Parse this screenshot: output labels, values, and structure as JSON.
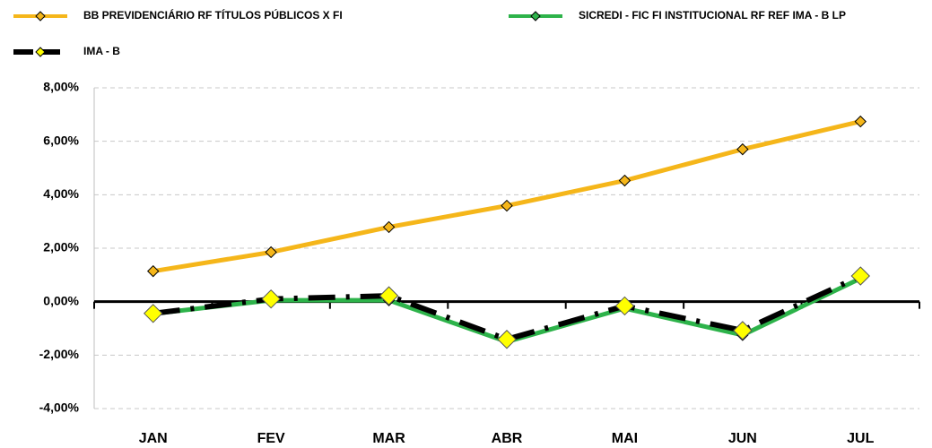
{
  "chart_data": {
    "type": "line",
    "categories": [
      "JAN",
      "FEV",
      "MAR",
      "ABR",
      "MAI",
      "JUN",
      "JUL"
    ],
    "series": [
      {
        "name": "BB PREVIDENCIÁRIO RF TÍTULOS PÚBLICOS X FI",
        "color": "#f5b61a",
        "marker_color": "#f5b61a",
        "values": [
          1.14,
          1.85,
          2.79,
          3.59,
          4.53,
          5.7,
          6.74
        ]
      },
      {
        "name": "SICREDI - FIC FI INSTITUCIONAL RF REF IMA - B LP",
        "color": "#2db34a",
        "marker_color": "#2db34a",
        "values": [
          -0.45,
          0.05,
          0.05,
          -1.5,
          -0.25,
          -1.25,
          0.87
        ]
      },
      {
        "name": "IMA - B",
        "color": "#000000",
        "marker_color": "#ffff00",
        "dashed": true,
        "values": [
          -0.44,
          0.1,
          0.22,
          -1.41,
          -0.16,
          -1.08,
          0.96
        ]
      }
    ],
    "ylim": [
      -4,
      8
    ],
    "yticks": [
      {
        "value": -4,
        "label": "-4,00%"
      },
      {
        "value": -2,
        "label": "-2,00%"
      },
      {
        "value": 0,
        "label": "0,00%"
      },
      {
        "value": 2,
        "label": "2,00%"
      },
      {
        "value": 4,
        "label": "4,00%"
      },
      {
        "value": 6,
        "label": "6,00%"
      },
      {
        "value": 8,
        "label": "8,00%"
      }
    ],
    "grid": true
  }
}
